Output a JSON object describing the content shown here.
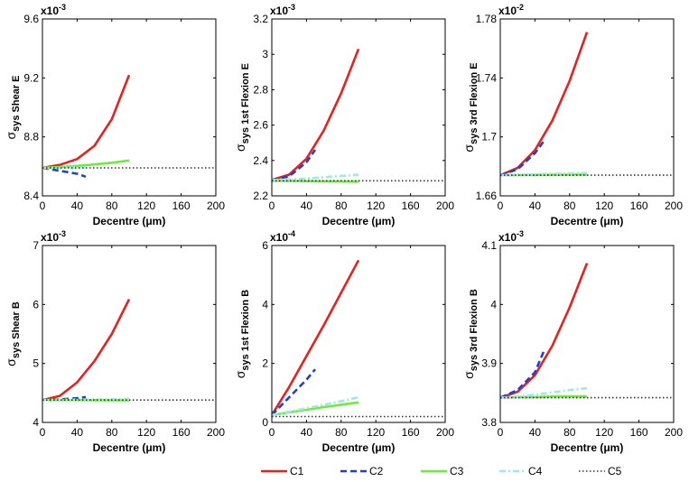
{
  "chart_data": {
    "type": "line",
    "legend": {
      "position": "bottom-center",
      "entries": [
        {
          "name": "C1",
          "color": "#e8211e",
          "dash": "solid"
        },
        {
          "name": "C2",
          "color": "#1f3fdc",
          "dash": "dashed"
        },
        {
          "name": "C3",
          "color": "#6cec3c",
          "dash": "solid"
        },
        {
          "name": "C4",
          "color": "#9fe8e4",
          "dash": "dashdot"
        },
        {
          "name": "C5",
          "color": "#333333",
          "dash": "dotted"
        }
      ]
    },
    "panels": [
      {
        "id": "shear-e",
        "ylabel_sub": "sys Shear E",
        "xlabel": "Decentre (μm)",
        "exponent": "-3",
        "xlim": [
          0,
          200
        ],
        "xticks": [
          0,
          40,
          80,
          120,
          160,
          200
        ],
        "ylim": [
          8.4,
          9.6
        ],
        "yticks": [
          8.4,
          8.8,
          9.2,
          9.6
        ],
        "ytick_labels": [
          "8.4",
          "8.8",
          "9.2",
          "9.6"
        ],
        "series": [
          {
            "name": "C1",
            "x": [
              0,
              20,
              40,
              60,
              80,
              100
            ],
            "y": [
              8.59,
              8.61,
              8.65,
              8.74,
              8.92,
              9.22
            ]
          },
          {
            "name": "C2",
            "x": [
              0,
              20,
              40,
              50
            ],
            "y": [
              8.59,
              8.57,
              8.55,
              8.53
            ]
          },
          {
            "name": "C3",
            "x": [
              0,
              20,
              40,
              60,
              80,
              100
            ],
            "y": [
              8.59,
              8.596,
              8.603,
              8.613,
              8.625,
              8.64
            ]
          },
          {
            "name": "C4",
            "x": [
              0,
              20,
              40,
              50
            ],
            "y": [
              8.59,
              8.59,
              8.592,
              8.593
            ]
          },
          {
            "name": "C5",
            "x": [
              0,
              200
            ],
            "y": [
              8.59,
              8.59
            ]
          }
        ]
      },
      {
        "id": "flexion1-e",
        "ylabel_sub": "sys 1st Flexion E",
        "xlabel": "Decentre (μm)",
        "exponent": "-3",
        "xlim": [
          0,
          200
        ],
        "xticks": [
          0,
          40,
          80,
          120,
          160,
          200
        ],
        "ylim": [
          2.2,
          3.2
        ],
        "yticks": [
          2.2,
          2.4,
          2.6,
          2.8,
          3.0,
          3.2
        ],
        "ytick_labels": [
          "2.2",
          "2.4",
          "2.6",
          "2.8",
          "3",
          "3.2"
        ],
        "series": [
          {
            "name": "C1",
            "x": [
              0,
              20,
              40,
              60,
              80,
              100
            ],
            "y": [
              2.29,
              2.32,
              2.41,
              2.57,
              2.78,
              3.03
            ]
          },
          {
            "name": "C2",
            "x": [
              0,
              20,
              40,
              50
            ],
            "y": [
              2.29,
              2.31,
              2.39,
              2.46
            ]
          },
          {
            "name": "C3",
            "x": [
              0,
              20,
              40,
              60,
              80,
              100
            ],
            "y": [
              2.285,
              2.284,
              2.283,
              2.282,
              2.281,
              2.28
            ]
          },
          {
            "name": "C4",
            "x": [
              0,
              20,
              40,
              60,
              80,
              100
            ],
            "y": [
              2.29,
              2.293,
              2.298,
              2.305,
              2.312,
              2.32
            ]
          },
          {
            "name": "C5",
            "x": [
              0,
              200
            ],
            "y": [
              2.285,
              2.285
            ]
          }
        ]
      },
      {
        "id": "flexion3-e",
        "ylabel_sub": "sys 3rd Flexion E",
        "xlabel": "Decentre (μm)",
        "exponent": "-2",
        "xlim": [
          0,
          200
        ],
        "xticks": [
          0,
          40,
          80,
          120,
          160,
          200
        ],
        "ylim": [
          1.66,
          1.78
        ],
        "yticks": [
          1.66,
          1.7,
          1.74,
          1.78
        ],
        "ytick_labels": [
          "1.66",
          "1.7",
          "1.74",
          "1.78"
        ],
        "series": [
          {
            "name": "C1",
            "x": [
              0,
              20,
              40,
              60,
              80,
              100
            ],
            "y": [
              1.674,
              1.679,
              1.691,
              1.711,
              1.738,
              1.771
            ]
          },
          {
            "name": "C2",
            "x": [
              0,
              20,
              40,
              50
            ],
            "y": [
              1.674,
              1.678,
              1.689,
              1.697
            ]
          },
          {
            "name": "C3",
            "x": [
              0,
              20,
              40,
              60,
              80,
              100
            ],
            "y": [
              1.674,
              1.6741,
              1.6742,
              1.6743,
              1.6744,
              1.6745
            ]
          },
          {
            "name": "C4",
            "x": [
              0,
              20,
              40,
              60,
              80,
              100
            ],
            "y": [
              1.674,
              1.6743,
              1.6746,
              1.675,
              1.6753,
              1.6756
            ]
          },
          {
            "name": "C5",
            "x": [
              0,
              200
            ],
            "y": [
              1.674,
              1.674
            ]
          }
        ]
      },
      {
        "id": "shear-b",
        "ylabel_sub": "sys Shear B",
        "xlabel": "Decentre (μm)",
        "exponent": "-3",
        "xlim": [
          0,
          200
        ],
        "xticks": [
          0,
          40,
          80,
          120,
          160,
          200
        ],
        "ylim": [
          4,
          7
        ],
        "yticks": [
          4,
          5,
          6,
          7
        ],
        "ytick_labels": [
          "4",
          "5",
          "6",
          "7"
        ],
        "series": [
          {
            "name": "C1",
            "x": [
              0,
              20,
              40,
              60,
              80,
              100
            ],
            "y": [
              4.38,
              4.45,
              4.68,
              5.04,
              5.5,
              6.09
            ]
          },
          {
            "name": "C2",
            "x": [
              0,
              20,
              40,
              50
            ],
            "y": [
              4.38,
              4.39,
              4.41,
              4.43
            ]
          },
          {
            "name": "C3",
            "x": [
              0,
              20,
              40,
              60,
              80,
              100
            ],
            "y": [
              4.38,
              4.38,
              4.38,
              4.378,
              4.376,
              4.375
            ]
          },
          {
            "name": "C4",
            "x": [
              0,
              20,
              40,
              60,
              80,
              100
            ],
            "y": [
              4.38,
              4.382,
              4.385,
              4.388,
              4.392,
              4.396
            ]
          },
          {
            "name": "C5",
            "x": [
              0,
              200
            ],
            "y": [
              4.38,
              4.38
            ]
          }
        ]
      },
      {
        "id": "flexion1-b",
        "ylabel_sub": "sys 1st Flexion B",
        "xlabel": "Decentre (μm)",
        "exponent": "-4",
        "xlim": [
          0,
          200
        ],
        "xticks": [
          0,
          40,
          80,
          120,
          160,
          200
        ],
        "ylim": [
          0,
          6
        ],
        "yticks": [
          0,
          2,
          4,
          6
        ],
        "ytick_labels": [
          "0",
          "2",
          "4",
          "6"
        ],
        "series": [
          {
            "name": "C1",
            "x": [
              0,
              20,
              40,
              60,
              80,
              100
            ],
            "y": [
              0.25,
              1.2,
              2.25,
              3.3,
              4.4,
              5.5
            ]
          },
          {
            "name": "C2",
            "x": [
              0,
              20,
              40,
              50
            ],
            "y": [
              0.25,
              0.85,
              1.45,
              1.8
            ]
          },
          {
            "name": "C3",
            "x": [
              0,
              20,
              40,
              60,
              80,
              100
            ],
            "y": [
              0.25,
              0.34,
              0.43,
              0.52,
              0.6,
              0.68
            ]
          },
          {
            "name": "C4",
            "x": [
              0,
              20,
              40,
              60,
              80,
              100
            ],
            "y": [
              0.25,
              0.36,
              0.48,
              0.6,
              0.72,
              0.85
            ]
          },
          {
            "name": "C5",
            "x": [
              0,
              200
            ],
            "y": [
              0.2,
              0.2
            ]
          }
        ]
      },
      {
        "id": "flexion3-b",
        "ylabel_sub": "sys 3rd Flexion B",
        "xlabel": "Decentre (μm)",
        "exponent": "-3",
        "xlim": [
          0,
          200
        ],
        "xticks": [
          0,
          40,
          80,
          120,
          160,
          200
        ],
        "ylim": [
          3.8,
          4.1
        ],
        "yticks": [
          3.8,
          3.9,
          4.0,
          4.1
        ],
        "ytick_labels": [
          "3.8",
          "3.9",
          "4",
          "4.1"
        ],
        "series": [
          {
            "name": "C1",
            "x": [
              0,
              20,
              40,
              60,
              80,
              100
            ],
            "y": [
              3.842,
              3.852,
              3.88,
              3.93,
              3.995,
              4.07
            ]
          },
          {
            "name": "C2",
            "x": [
              0,
              20,
              40,
              50
            ],
            "y": [
              3.842,
              3.855,
              3.885,
              3.92
            ]
          },
          {
            "name": "C3",
            "x": [
              0,
              20,
              40,
              60,
              80,
              100
            ],
            "y": [
              3.842,
              3.843,
              3.843,
              3.844,
              3.844,
              3.844
            ]
          },
          {
            "name": "C4",
            "x": [
              0,
              20,
              40,
              60,
              80,
              100
            ],
            "y": [
              3.842,
              3.844,
              3.847,
              3.851,
              3.855,
              3.858
            ]
          },
          {
            "name": "C5",
            "x": [
              0,
              200
            ],
            "y": [
              3.842,
              3.842
            ]
          }
        ]
      }
    ]
  }
}
